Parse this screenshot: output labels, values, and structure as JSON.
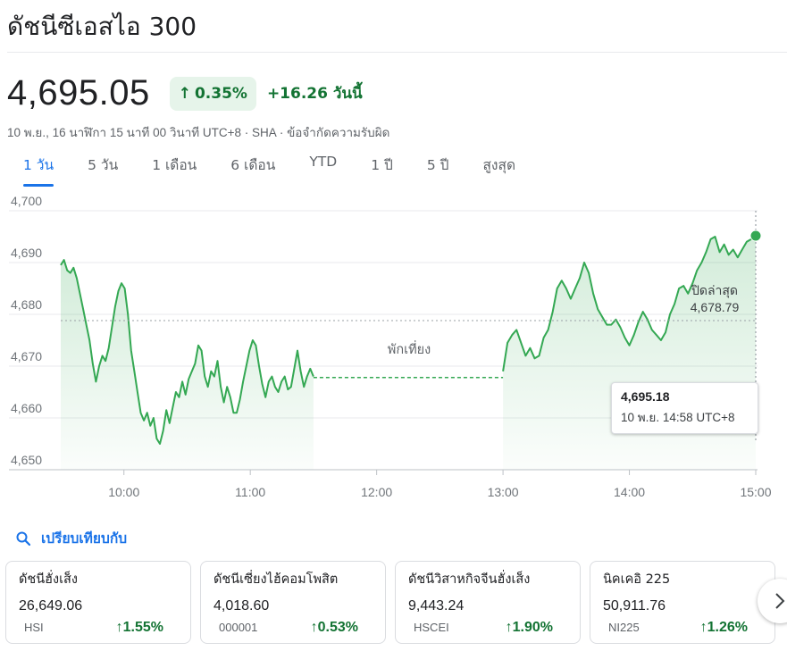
{
  "header": {
    "title": "ดัชนีซีเอสไอ 300"
  },
  "quote": {
    "price": "4,695.05",
    "change_pct": "0.35%",
    "change_abs": "+16.26 วันนี้",
    "meta": "10 พ.ย., 16 นาฬิกา 15 นาที 00 วินาที UTC+8 · SHA · ข้อจำกัดความรับผิด",
    "trend_icon": "arrow-up-icon"
  },
  "tabs": [
    {
      "label": "1 วัน",
      "active": true
    },
    {
      "label": "5 วัน",
      "active": false
    },
    {
      "label": "1 เดือน",
      "active": false
    },
    {
      "label": "6 เดือน",
      "active": false
    },
    {
      "label": "YTD",
      "active": false
    },
    {
      "label": "1 ปี",
      "active": false
    },
    {
      "label": "5 ปี",
      "active": false
    },
    {
      "label": "สูงสุด",
      "active": false
    }
  ],
  "chart_data": {
    "type": "line",
    "x_ticks": [
      "10:00",
      "11:00",
      "12:00",
      "13:00",
      "14:00",
      "15:00"
    ],
    "y_ticks": [
      "4,650",
      "4,660",
      "4,670",
      "4,680",
      "4,690",
      "4,700"
    ],
    "ylim": [
      4650,
      4700
    ],
    "xlim": [
      "09:30",
      "15:00"
    ],
    "grid": true,
    "previous_close": {
      "label": "ปิดล่าสุด",
      "value": "4,678.79",
      "y": 4678.79
    },
    "lunch_break": {
      "label": "พักเที่ยง",
      "from": "11:30",
      "to": "13:00",
      "level": 4667.8
    },
    "tooltip": {
      "value": "4,695.18",
      "time": "10 พ.ย. 14:58 UTC+8"
    },
    "colors": {
      "line": "#34a853",
      "fill": "#e6f4ea",
      "grid": "#e8eaed"
    },
    "series_morning": {
      "start": "09:30",
      "end": "11:30",
      "values": [
        4689.5,
        4690.5,
        4688.5,
        4688.0,
        4689.0,
        4687.0,
        4684.0,
        4681.0,
        4678.0,
        4675.0,
        4670.5,
        4667.0,
        4670.0,
        4672.0,
        4671.0,
        4673.5,
        4677.5,
        4681.5,
        4684.5,
        4686.0,
        4685.0,
        4680.0,
        4673.0,
        4669.0,
        4665.0,
        4661.0,
        4659.5,
        4661.0,
        4658.5,
        4660.0,
        4656.0,
        4655.0,
        4657.5,
        4661.5,
        4659.0,
        4662.0,
        4665.0,
        4664.0,
        4667.0,
        4664.5,
        4667.5,
        4669.0,
        4670.5,
        4674.0,
        4673.0,
        4668.0,
        4666.0,
        4669.0,
        4668.0,
        4671.0,
        4666.0,
        4663.0,
        4666.0,
        4664.0,
        4661.0,
        4661.0,
        4663.5,
        4667.0,
        4670.0,
        4673.0,
        4675.0,
        4674.0,
        4670.0,
        4666.5,
        4664.0,
        4667.0,
        4668.0,
        4666.0,
        4665.0,
        4667.0,
        4668.0,
        4665.5,
        4666.0,
        4669.5,
        4673.0,
        4669.0,
        4666.0,
        4668.0,
        4669.5,
        4668.0
      ]
    },
    "series_afternoon": {
      "start": "13:00",
      "end": "15:00",
      "values": [
        4669.0,
        4674.5,
        4676.0,
        4677.0,
        4674.5,
        4672.0,
        4673.5,
        4671.5,
        4672.0,
        4675.5,
        4677.0,
        4680.5,
        4685.0,
        4686.5,
        4685.0,
        4683.0,
        4685.0,
        4687.0,
        4690.0,
        4688.0,
        4684.0,
        4681.0,
        4679.5,
        4678.0,
        4678.0,
        4679.0,
        4677.5,
        4675.5,
        4674.0,
        4676.0,
        4678.5,
        4680.5,
        4679.0,
        4677.0,
        4676.0,
        4675.0,
        4676.5,
        4680.0,
        4682.0,
        4685.0,
        4685.5,
        4684.0,
        4686.0,
        4688.5,
        4690.0,
        4692.0,
        4694.5,
        4695.0,
        4692.0,
        4693.5,
        4691.5,
        4692.5,
        4691.0,
        4692.5,
        4694.0,
        4694.5,
        4695.18
      ]
    }
  },
  "compare": {
    "label": "เปรียบเทียบกับ",
    "icon": "search-icon"
  },
  "cards": [
    {
      "name": "ดัชนีฮั่งเส็ง",
      "value": "26,649.06",
      "symbol": "HSI",
      "change": "1.55%"
    },
    {
      "name": "ดัชนีเซี่ยงไฮ้คอมโพสิต",
      "value": "4,018.60",
      "symbol": "000001",
      "change": "0.53%"
    },
    {
      "name": "ดัชนีวิสาหกิจจีนฮั่งเส็ง",
      "value": "9,443.24",
      "symbol": "HSCEI",
      "change": "1.90%"
    },
    {
      "name": "นิคเคอิ 225",
      "value": "50,911.76",
      "symbol": "NI225",
      "change": "1.26%"
    }
  ],
  "cards_next_icon": "chevron-right-icon"
}
